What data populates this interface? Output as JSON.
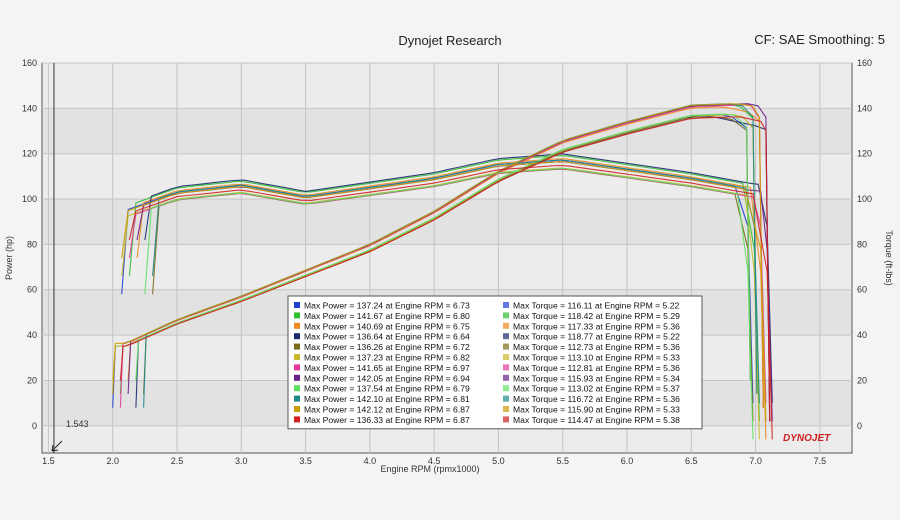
{
  "header": {
    "title": "Dynojet Research",
    "settings": "CF: SAE Smoothing: 5"
  },
  "brand": {
    "logo_text": "DYNOJET",
    "logo_color": "#cc1f1f"
  },
  "cursor_label": "1.543",
  "chart_data": {
    "type": "line",
    "xlabel": "Engine RPM (rpmx1000)",
    "ylabel": "Power (hp)",
    "y2label": "Torque (ft-lbs)",
    "xlim": [
      1.45,
      7.75
    ],
    "ylim": [
      -12,
      160
    ],
    "xticks": [
      1.5,
      2.0,
      2.5,
      3.0,
      3.5,
      4.0,
      4.5,
      5.0,
      5.5,
      6.0,
      6.5,
      7.0,
      7.5
    ],
    "xtick_labels": [
      "1.5",
      "2.0",
      "2.5",
      "3.0",
      "3.5",
      "4.0",
      "4.5",
      "5.0",
      "5.5",
      "6.0",
      "6.5",
      "7.0",
      "7.5"
    ],
    "yticks": [
      0,
      20,
      40,
      60,
      80,
      100,
      120,
      140,
      160
    ],
    "ytick_labels": [
      "0",
      "20",
      "40",
      "60",
      "80",
      "100",
      "120",
      "140",
      "160"
    ],
    "grid": true,
    "cursor_x": 1.543,
    "power_shape": {
      "x": [
        2.1,
        2.5,
        3.0,
        3.5,
        4.0,
        4.5,
        5.0,
        5.5,
        6.0,
        6.5,
        7.0
      ],
      "y": [
        35,
        45,
        55,
        66,
        77,
        91,
        108,
        121,
        129,
        136,
        137
      ]
    },
    "torque_shape": {
      "x": [
        2.1,
        2.5,
        3.0,
        3.5,
        4.0,
        4.5,
        5.0,
        5.5,
        6.0,
        6.5,
        7.0
      ],
      "y": [
        94,
        102,
        105,
        100,
        104,
        108,
        114,
        116,
        112,
        108,
        103
      ]
    },
    "series": [
      {
        "color": "#1f3fd0",
        "power_label": "Max Power = 137.24 at Engine RPM = 6.73",
        "torque_label": "Max Torque = 116.11 at Engine RPM = 5.22",
        "max_power": 137.24,
        "max_power_rpm": 6.73,
        "max_torque": 116.11,
        "max_torque_rpm": 5.22
      },
      {
        "color": "#2fbf2f",
        "power_label": "Max Power = 141.67 at Engine RPM = 6.80",
        "torque_label": "Max Torque = 118.42 at Engine RPM = 5.29",
        "max_power": 141.67,
        "max_power_rpm": 6.8,
        "max_torque": 118.42,
        "max_torque_rpm": 5.29
      },
      {
        "color": "#f08a1c",
        "power_label": "Max Power = 140.69 at Engine RPM = 6.75",
        "torque_label": "Max Torque = 117.33 at Engine RPM = 5.36",
        "max_power": 140.69,
        "max_power_rpm": 6.75,
        "max_torque": 117.33,
        "max_torque_rpm": 5.36
      },
      {
        "color": "#1a2a6e",
        "power_label": "Max Power = 136.64 at Engine RPM = 6.64",
        "torque_label": "Max Torque = 118.77 at Engine RPM = 5.22",
        "max_power": 136.64,
        "max_power_rpm": 6.64,
        "max_torque": 118.77,
        "max_torque_rpm": 5.22
      },
      {
        "color": "#7a6a1a",
        "power_label": "Max Power = 136.26 at Engine RPM = 6.72",
        "torque_label": "Max Torque = 112.73 at Engine RPM = 5.36",
        "max_power": 136.26,
        "max_power_rpm": 6.72,
        "max_torque": 112.73,
        "max_torque_rpm": 5.36
      },
      {
        "color": "#c8b92a",
        "power_label": "Max Power = 137.23 at Engine RPM = 6.82",
        "torque_label": "Max Torque = 113.10 at Engine RPM = 5.33",
        "max_power": 137.23,
        "max_power_rpm": 6.82,
        "max_torque": 113.1,
        "max_torque_rpm": 5.33
      },
      {
        "color": "#e23a9a",
        "power_label": "Max Power = 141.65 at Engine RPM = 6.97",
        "torque_label": "Max Torque = 112.81 at Engine RPM = 5.36",
        "max_power": 141.65,
        "max_power_rpm": 6.97,
        "max_torque": 112.81,
        "max_torque_rpm": 5.36
      },
      {
        "color": "#6a1f8a",
        "power_label": "Max Power = 142.05 at Engine RPM = 6.94",
        "torque_label": "Max Torque = 115.93 at Engine RPM = 5.34",
        "max_power": 142.05,
        "max_power_rpm": 6.94,
        "max_torque": 115.93,
        "max_torque_rpm": 5.34
      },
      {
        "color": "#5fe05f",
        "power_label": "Max Power = 137.54 at Engine RPM = 6.79",
        "torque_label": "Max Torque = 113.02 at Engine RPM = 5.37",
        "max_power": 137.54,
        "max_power_rpm": 6.79,
        "max_torque": 113.02,
        "max_torque_rpm": 5.37
      },
      {
        "color": "#1f8a8a",
        "power_label": "Max Power = 142.10 at Engine RPM = 6.81",
        "torque_label": "Max Torque = 116.72 at Engine RPM = 5.36",
        "max_power": 142.1,
        "max_power_rpm": 6.81,
        "max_torque": 116.72,
        "max_torque_rpm": 5.36
      },
      {
        "color": "#c9a000",
        "power_label": "Max Power = 142.12 at Engine RPM = 6.87",
        "torque_label": "Max Torque = 115.90 at Engine RPM = 5.33",
        "max_power": 142.12,
        "max_power_rpm": 6.87,
        "max_torque": 115.9,
        "max_torque_rpm": 5.33
      },
      {
        "color": "#d02020",
        "power_label": "Max Power = 136.33 at Engine RPM = 6.87",
        "torque_label": "Max Torque = 114.47 at Engine RPM = 5.38",
        "max_power": 136.33,
        "max_power_rpm": 6.87,
        "max_torque": 114.47,
        "max_torque_rpm": 5.38
      }
    ]
  }
}
